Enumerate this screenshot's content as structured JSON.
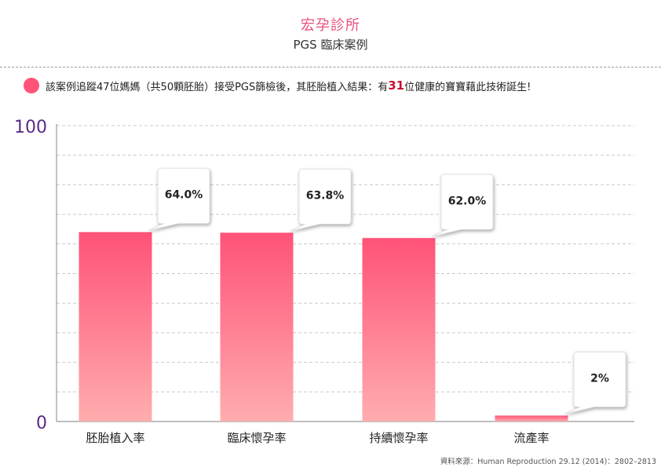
{
  "header": {
    "brand": "宏孕診所",
    "subtitle": "PGS 臨床案例"
  },
  "summary": {
    "text_before": "該案例追蹤47位媽媽（共50顆胚胎）接受PGS篩檢後，其胚胎植入結果：有",
    "highlight": "31",
    "text_after": "位健康的寶寶藉此技術誕生!",
    "bullet_color": "#ff5378",
    "highlight_color": "#c8102e"
  },
  "chart_data": {
    "type": "bar",
    "categories": [
      "胚胎植入率",
      "臨床懷孕率",
      "持續懷孕率",
      "流產率"
    ],
    "values": [
      64.0,
      63.8,
      62.0,
      2
    ],
    "data_labels": [
      "64.0%",
      "63.8%",
      "62.0%",
      "2%"
    ],
    "ylim": [
      0,
      100
    ],
    "y_tick_labels": [
      "0",
      "100"
    ],
    "gridlines": true,
    "bar_gradient": [
      "#ff5278",
      "#ffadae"
    ],
    "axis_label_color": "#5b2a86"
  },
  "footer": {
    "source": "資料來源：Human Reproduction 29.12 (2014)：2802–2813"
  }
}
